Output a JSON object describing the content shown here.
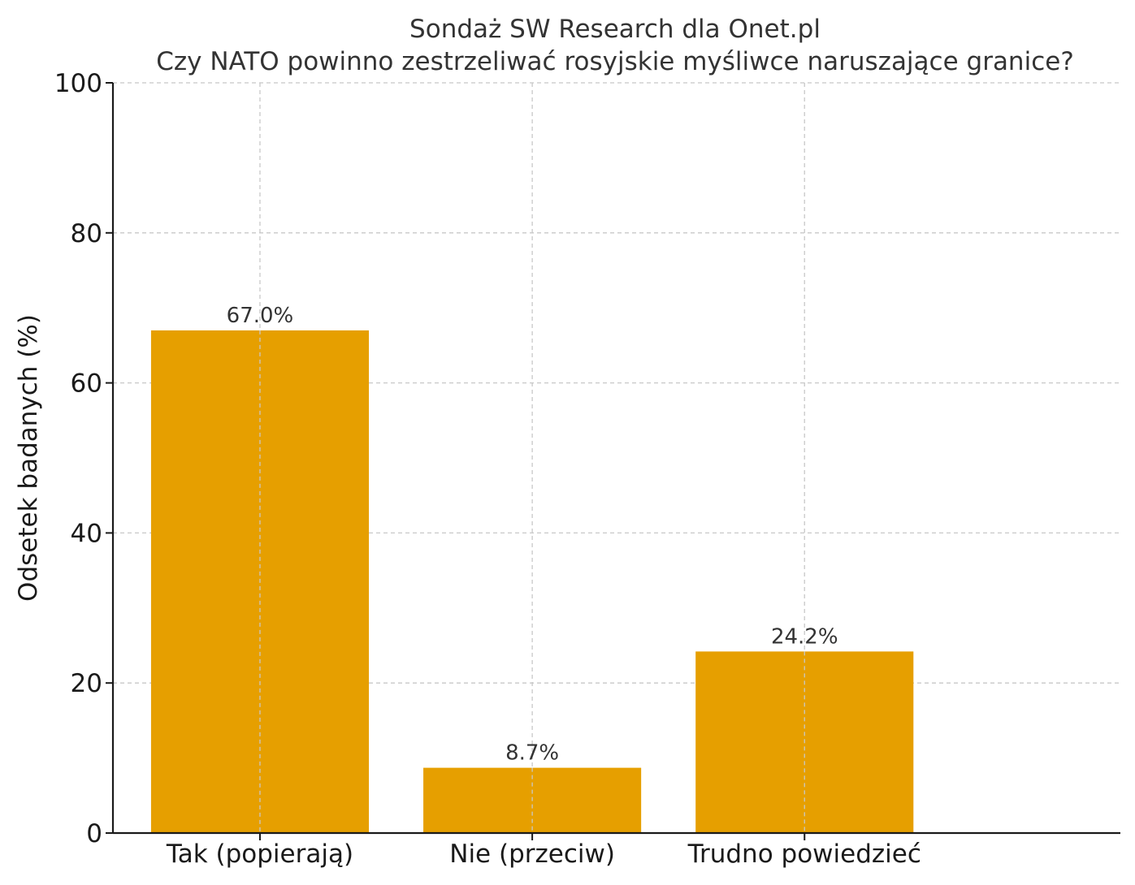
{
  "chart_data": {
    "type": "bar",
    "title": "Sondaż SW Research dla Onet.pl",
    "subtitle": "Czy NATO powinno zestrzeliwać rosyjskie myśliwce naruszające granice?",
    "xlabel": "",
    "ylabel": "Odsetek badanych (%)",
    "categories": [
      "Tak (popierają)",
      "Nie (przeciw)",
      "Trudno powiedzieć"
    ],
    "values": [
      67.0,
      8.7,
      24.2
    ],
    "data_labels": [
      "67.0%",
      "8.7%",
      "24.2%"
    ],
    "ylim": [
      0,
      100
    ],
    "yticks": [
      0,
      20,
      40,
      60,
      80,
      100
    ],
    "ytick_labels": [
      "0",
      "20",
      "40",
      "60",
      "80",
      "100"
    ],
    "grid": true,
    "colors": {
      "bar": "#E69F00",
      "grid": "#c8c8c8",
      "axis": "#1a1a1a"
    }
  }
}
